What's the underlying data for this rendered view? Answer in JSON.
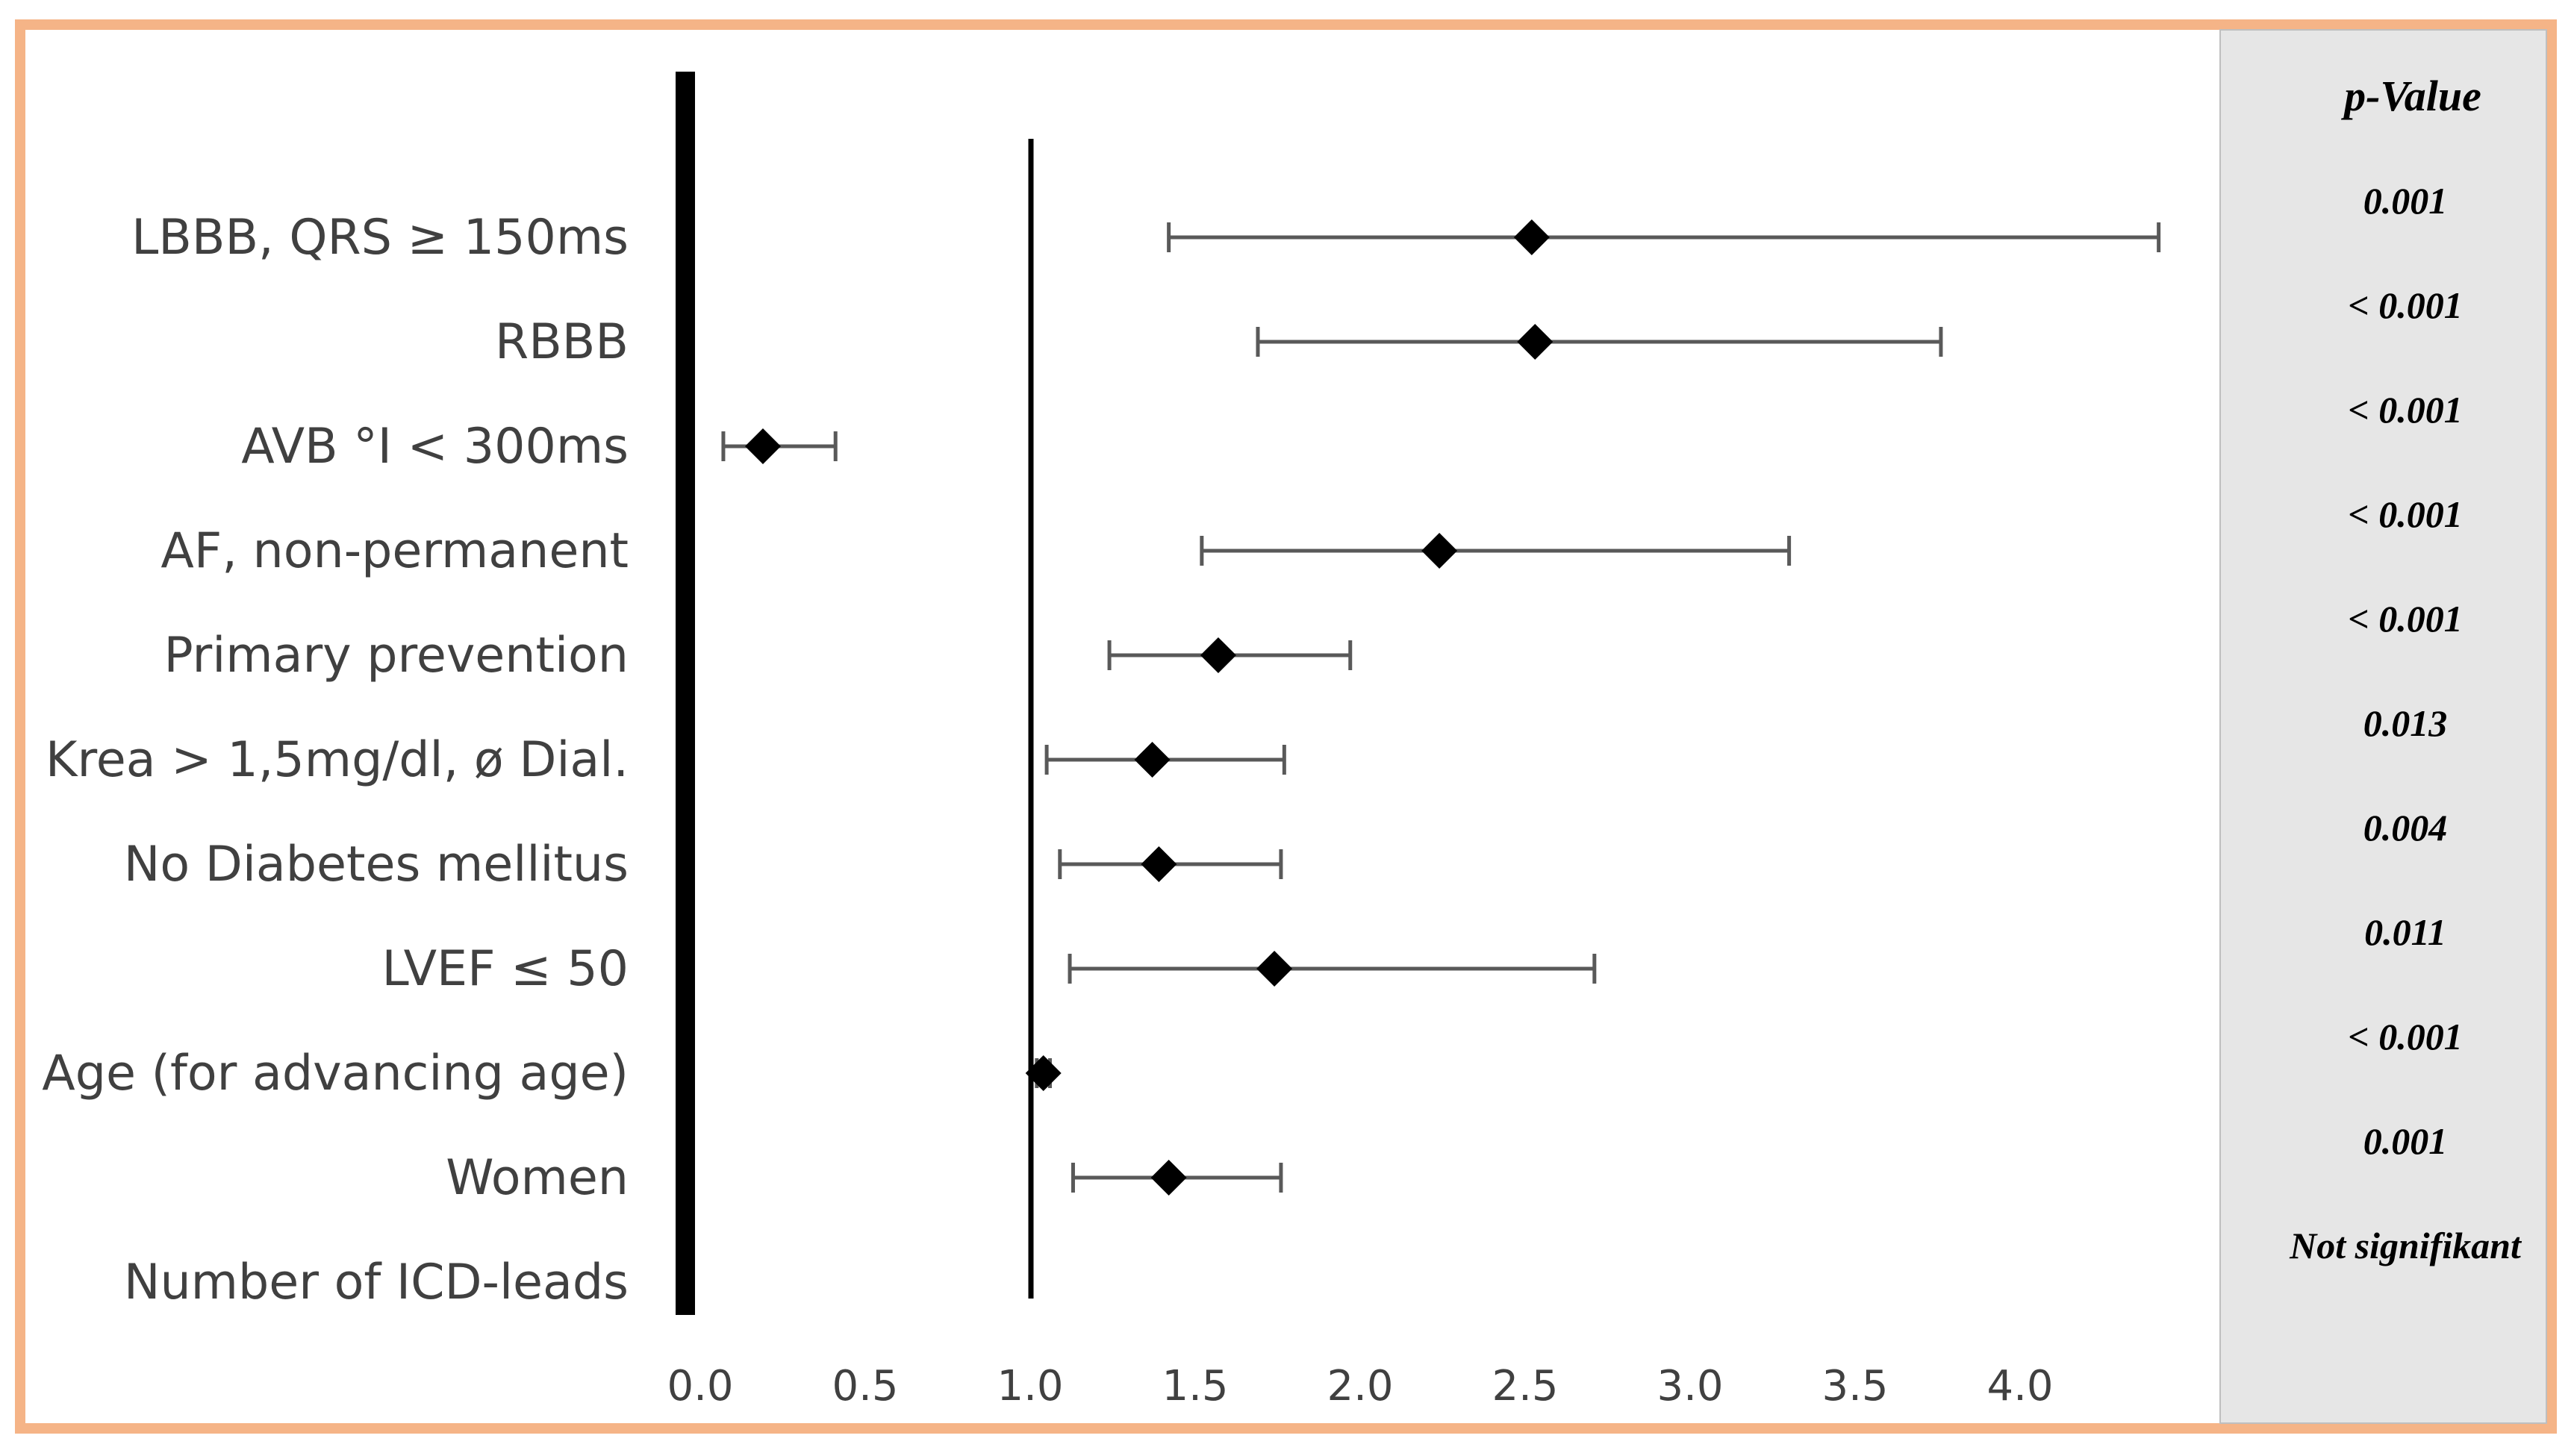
{
  "chart_data": {
    "type": "forest",
    "title": "",
    "xlabel": "",
    "ylabel": "",
    "xlim": [
      0,
      4.5
    ],
    "x_ticks": [
      "0.0",
      "0.5",
      "1.0",
      "1.5",
      "2.0",
      "2.5",
      "3.0",
      "3.5",
      "4.0"
    ],
    "x_tick_values": [
      0,
      0.5,
      1.0,
      1.5,
      2.0,
      2.5,
      3.0,
      3.5,
      4.0
    ],
    "reference_line": 1.0,
    "pvalue_header": "p-Value",
    "colors": {
      "frame": "#f5b487",
      "panel": "#e6e6e6",
      "marker": "#000000",
      "whisker": "#595959"
    },
    "rows": [
      {
        "label": "LBBB, QRS ≥ 150ms",
        "estimate": 2.52,
        "lower": 1.42,
        "upper": 4.42,
        "p_value": "0.001"
      },
      {
        "label": "RBBB",
        "estimate": 2.53,
        "lower": 1.69,
        "upper": 3.76,
        "p_value": "< 0.001"
      },
      {
        "label": "AVB °I < 300ms",
        "estimate": 0.19,
        "lower": 0.07,
        "upper": 0.41,
        "p_value": "< 0.001"
      },
      {
        "label": "AF, non-permanent",
        "estimate": 2.24,
        "lower": 1.52,
        "upper": 3.3,
        "p_value": "< 0.001"
      },
      {
        "label": "Primary prevention",
        "estimate": 1.57,
        "lower": 1.24,
        "upper": 1.97,
        "p_value": "< 0.001"
      },
      {
        "label": "Krea > 1,5mg/dl, ø Dial.",
        "estimate": 1.37,
        "lower": 1.05,
        "upper": 1.77,
        "p_value": "0.013"
      },
      {
        "label": "No Diabetes mellitus",
        "estimate": 1.39,
        "lower": 1.09,
        "upper": 1.76,
        "p_value": "0.004"
      },
      {
        "label": "LVEF ≤ 50",
        "estimate": 1.74,
        "lower": 1.12,
        "upper": 2.71,
        "p_value": "0.011"
      },
      {
        "label": "Age (for advancing age)",
        "estimate": 1.04,
        "lower": 1.02,
        "upper": 1.06,
        "p_value": "< 0.001"
      },
      {
        "label": "Women",
        "estimate": 1.42,
        "lower": 1.13,
        "upper": 1.76,
        "p_value": "0.001"
      },
      {
        "label": "Number of ICD-leads",
        "estimate": null,
        "lower": null,
        "upper": null,
        "p_value": "Not signifikant"
      }
    ]
  }
}
